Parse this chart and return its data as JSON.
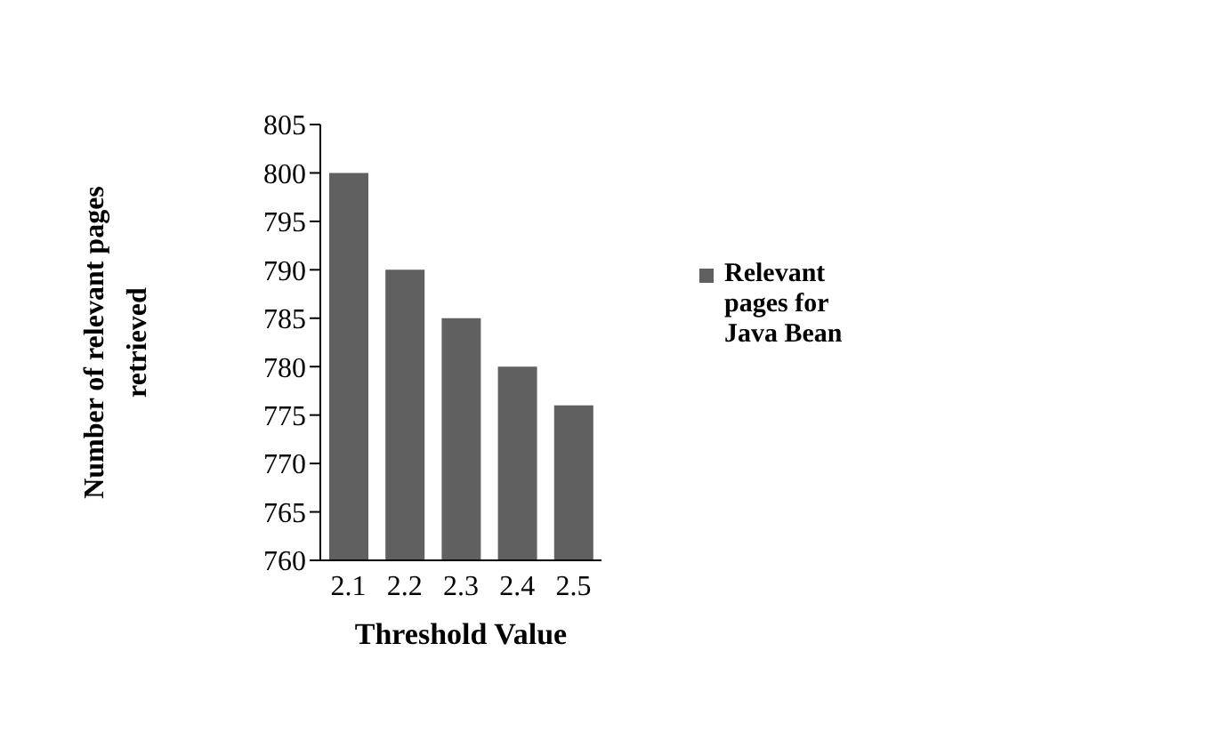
{
  "chart_data": {
    "type": "bar",
    "xlabel": "Threshold Value",
    "ylabel": "Number of relevant pages retrieved",
    "categories": [
      "2.1",
      "2.2",
      "2.3",
      "2.4",
      "2.5"
    ],
    "series": [
      {
        "name": "Relevant pages for Java Bean",
        "color": "#606060",
        "values": [
          800,
          790,
          785,
          780,
          776
        ]
      }
    ],
    "ylim": [
      760,
      805
    ],
    "yticks": [
      760,
      765,
      770,
      775,
      780,
      785,
      790,
      795,
      800,
      805
    ],
    "grid": false,
    "legend": "right"
  }
}
